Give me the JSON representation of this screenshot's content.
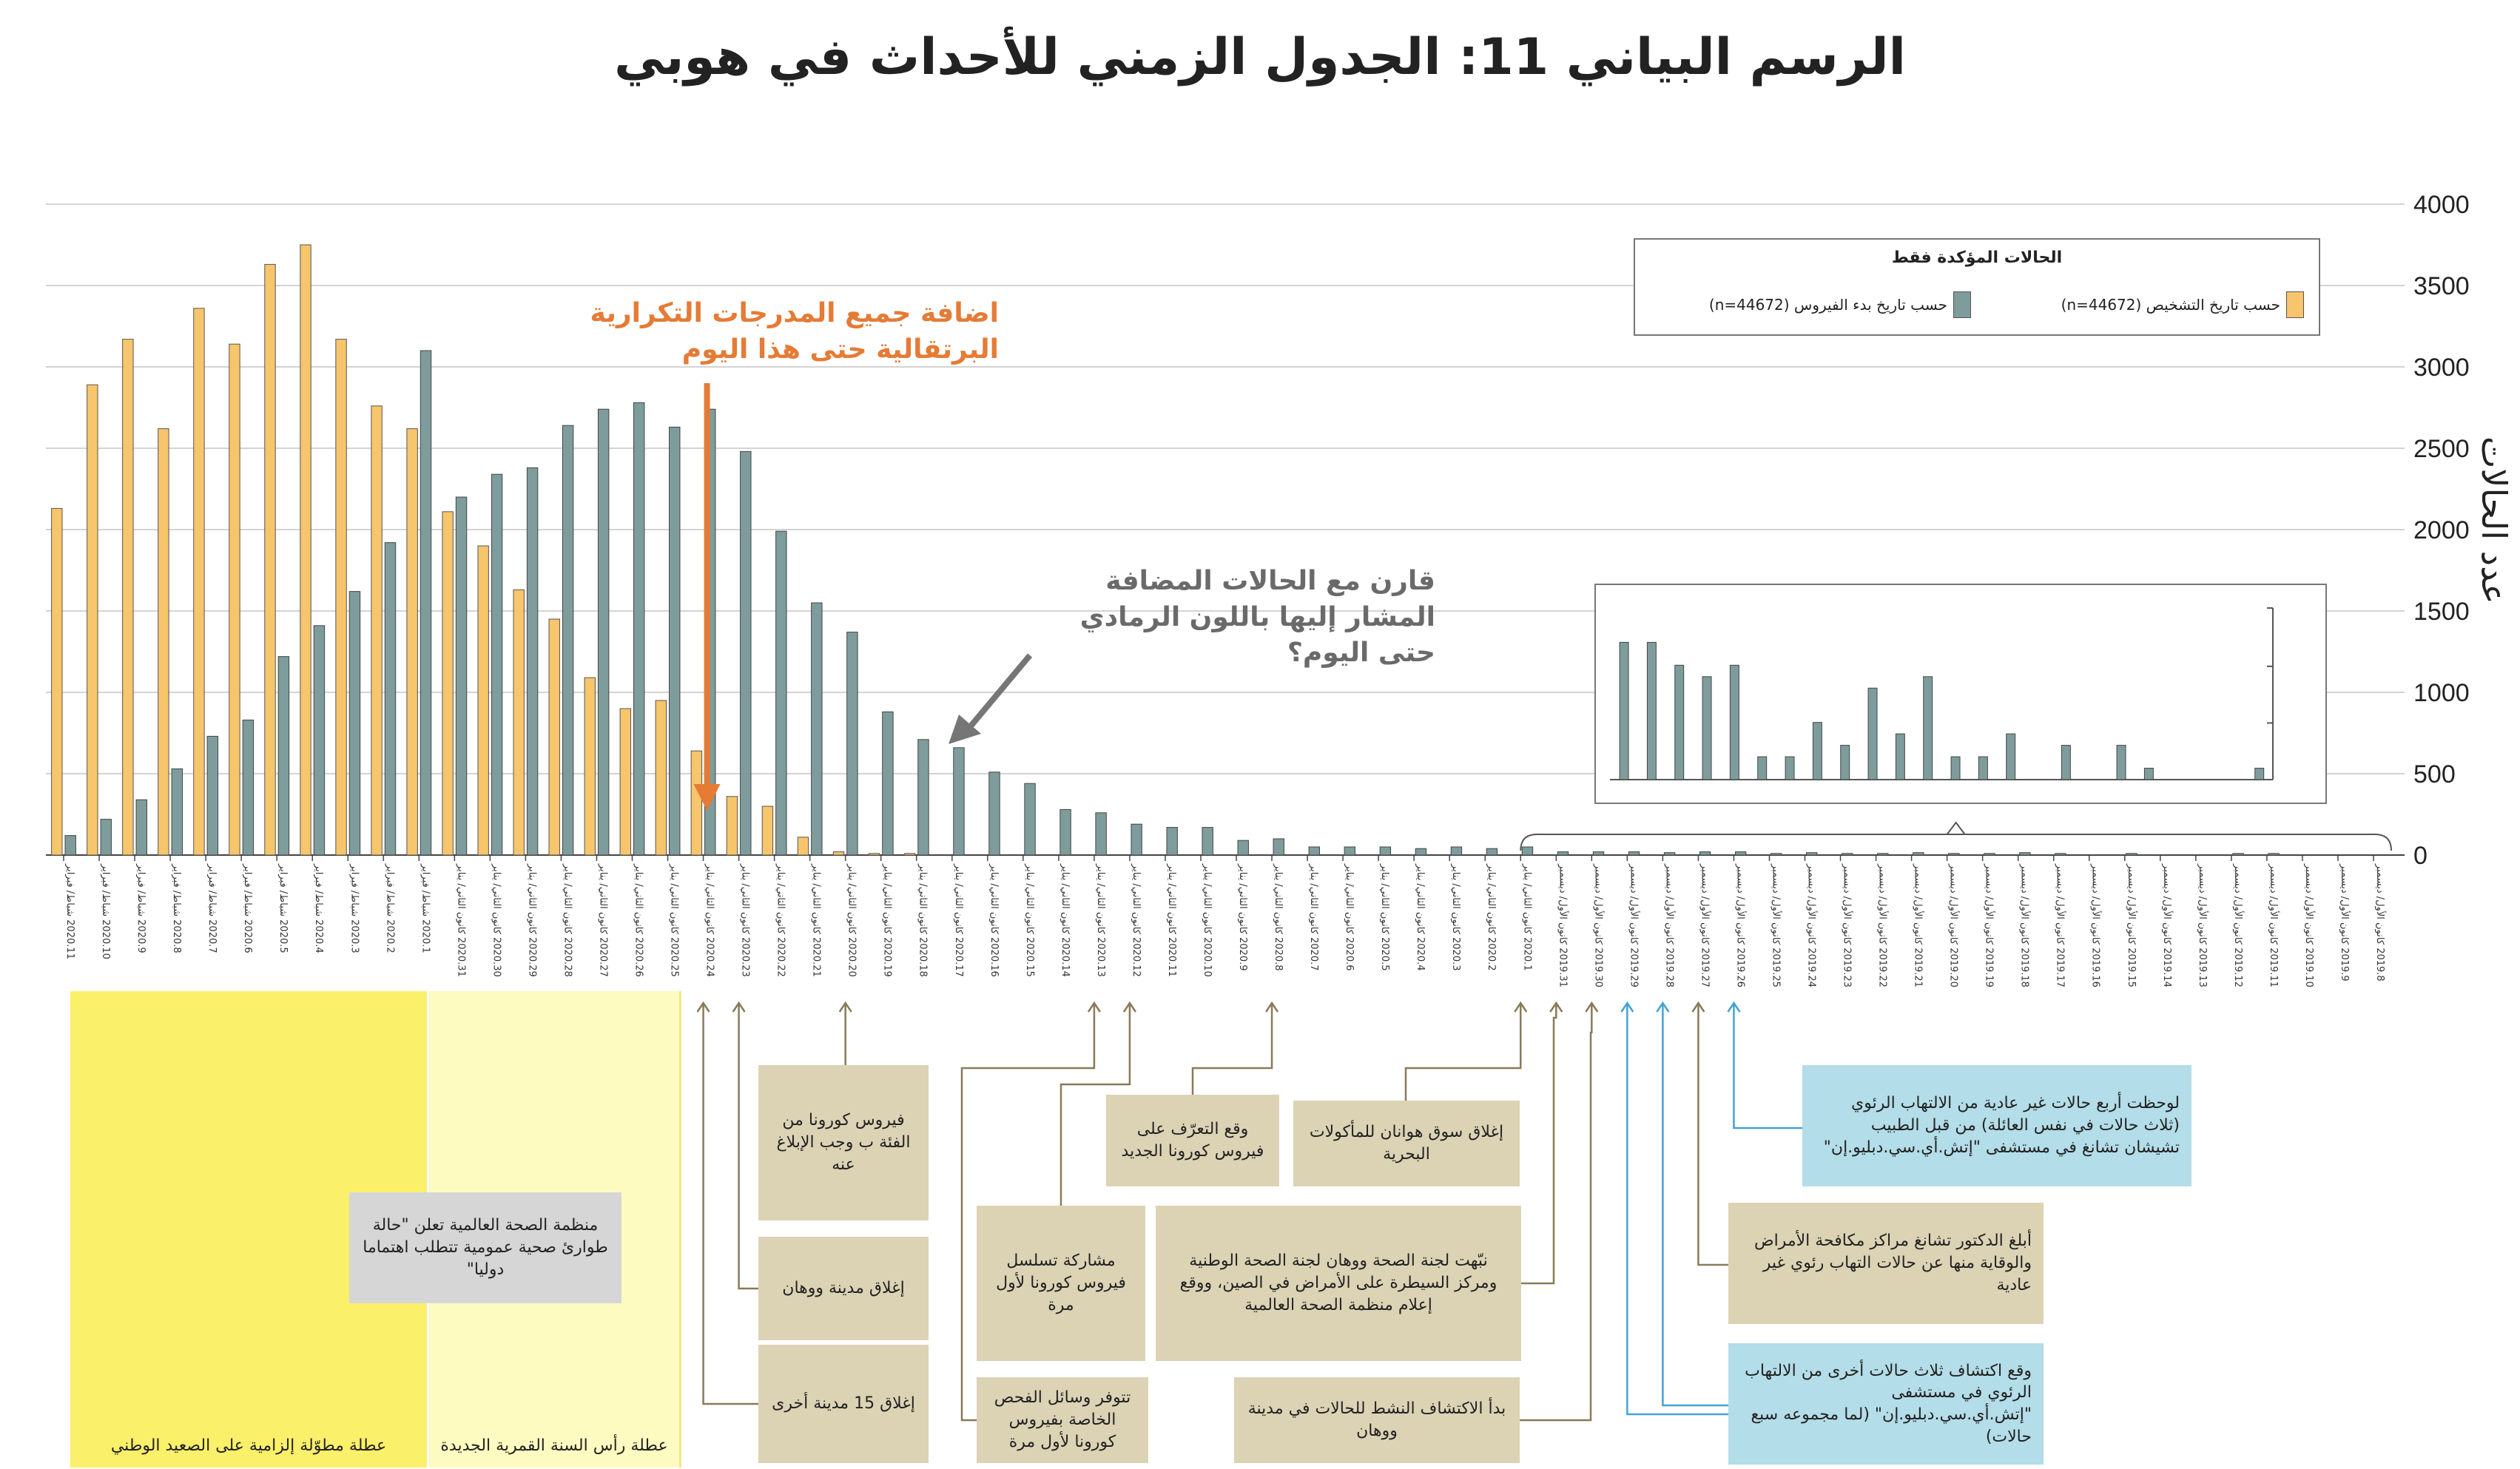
{
  "title": "الرسم البياني 11: الجدول الزمني للأحداث في هوبي",
  "colors": {
    "onset": "#f7c56b",
    "diagnosis": "#7f9c9c",
    "yellow_dark": "#fbf06a",
    "yellow_light": "#fdfbc0",
    "arrow_orange": "#e57b35",
    "arrow_gray": "#767676",
    "blue_line": "#45a2d2"
  },
  "chart_data": {
    "type": "bar",
    "ylabel": "عدد الحالات",
    "ylim": [
      0,
      4000
    ],
    "yticks": [
      "0",
      "500",
      "1000",
      "1500",
      "2000",
      "2500",
      "3000",
      "3500",
      "4000"
    ],
    "legend": {
      "title": "الحالات المؤكدة فقط",
      "items": [
        "حسب تاريخ التشخيص (n=44672)",
        "حسب تاريخ بدء الفيروس (n=44672)"
      ],
      "position": "top-right"
    },
    "categories": [
      "2020.11 شباط/ فبراير",
      "2020.10 شباط/ فبراير",
      "2020.9 شباط/ فبراير",
      "2020.8 شباط/ فبراير",
      "2020.7 شباط/ فبراير",
      "2020.6 شباط/ فبراير",
      "2020.5 شباط/ فبراير",
      "2020.4 شباط/ فبراير",
      "2020.3 شباط/ فبراير",
      "2020.2 شباط/ فبراير",
      "2020.1 شباط/ فبراير",
      "2020.31 كانون الثاني/ يناير",
      "2020.30 كانون الثاني/ يناير",
      "2020.29 كانون الثاني/ يناير",
      "2020.28 كانون الثاني/ يناير",
      "2020.27 كانون الثاني/ يناير",
      "2020.26 كانون الثاني/ يناير",
      "2020.25 كانون الثاني/ يناير",
      "2020.24 كانون الثاني/ يناير",
      "2020.23 كانون الثاني/ يناير",
      "2020.22 كانون الثاني/ يناير",
      "2020.21 كانون الثاني/ يناير",
      "2020.20 كانون الثاني/ يناير",
      "2020.19 كانون الثاني/ يناير",
      "2020.18 كانون الثاني/ يناير",
      "2020.17 كانون الثاني/ يناير",
      "2020.16 كانون الثاني/ يناير",
      "2020.15 كانون الثاني/ يناير",
      "2020.14 كانون الثاني/ يناير",
      "2020.13 كانون الثاني/ يناير",
      "2020.12 كانون الثاني/ يناير",
      "2020.11 كانون الثاني/ يناير",
      "2020.10 كانون الثاني/ يناير",
      "2020.9 كانون الثاني/ يناير",
      "2020.8 كانون الثاني/ يناير",
      "2020.7 كانون الثاني/ يناير",
      "2020.6 كانون الثاني/ يناير",
      "2020.5 كانون الثاني/ يناير",
      "2020.4 كانون الثاني/ يناير",
      "2020.3 كانون الثاني/ يناير",
      "2020.2 كانون الثاني/ يناير",
      "2020.1 كانون الثاني/ يناير",
      "2019.31 كانون الأول/ ديسمبر",
      "2019.30 كانون الأول/ ديسمبر",
      "2019.29 كانون الأول/ ديسمبر",
      "2019.28 كانون الأول/ ديسمبر",
      "2019.27 كانون الأول/ ديسمبر",
      "2019.26 كانون الأول/ ديسمبر",
      "2019.25 كانون الأول/ ديسمبر",
      "2019.24 كانون الأول/ ديسمبر",
      "2019.23 كانون الأول/ ديسمبر",
      "2019.22 كانون الأول/ ديسمبر",
      "2019.21 كانون الأول/ ديسمبر",
      "2019.20 كانون الأول/ ديسمبر",
      "2019.19 كانون الأول/ ديسمبر",
      "2019.18 كانون الأول/ ديسمبر",
      "2019.17 كانون الأول/ ديسمبر",
      "2019.16 كانون الأول/ ديسمبر",
      "2019.15 كانون الأول/ ديسمبر",
      "2019.14 كانون الأول/ ديسمبر",
      "2019.13 كانون الأول/ ديسمبر",
      "2019.12 كانون الأول/ ديسمبر",
      "2019.11 كانون الأول/ ديسمبر",
      "2019.10 كانون الأول/ ديسمبر",
      "2019.9 كانون الأول/ ديسمبر",
      "2019.8 كانون الأول/ ديسمبر"
    ],
    "series": [
      {
        "name": "حسب تاريخ التشخيص (n=44672)",
        "color": "#f7c56b",
        "values": [
          2130,
          2890,
          3170,
          2620,
          3360,
          3140,
          3630,
          3750,
          3170,
          2760,
          2620,
          2110,
          1900,
          1630,
          1450,
          1090,
          900,
          950,
          640,
          360,
          300,
          110,
          20,
          10,
          10,
          0,
          0,
          0,
          0,
          0,
          0,
          0,
          0,
          0,
          0,
          0,
          0,
          0,
          0,
          0,
          0,
          0,
          0,
          0,
          0,
          0,
          0,
          0,
          0,
          0,
          0,
          0,
          0,
          0,
          0,
          0,
          0,
          0,
          0,
          0,
          0,
          0,
          0,
          0,
          0,
          0
        ]
      },
      {
        "name": "حسب تاريخ بدء الفيروس (n=44672)",
        "color": "#7f9c9c",
        "values": [
          120,
          220,
          340,
          530,
          730,
          830,
          1220,
          1410,
          1620,
          1920,
          3100,
          2200,
          2340,
          2380,
          2640,
          2740,
          2780,
          2630,
          2740,
          2480,
          1990,
          1550,
          1370,
          880,
          710,
          660,
          510,
          440,
          280,
          260,
          190,
          170,
          170,
          90,
          100,
          50,
          50,
          50,
          40,
          50,
          40,
          50,
          20,
          20,
          20,
          15,
          20,
          20,
          10,
          15,
          10,
          10,
          15,
          10,
          10,
          15,
          10,
          0,
          10,
          0,
          0,
          10,
          10,
          0,
          0,
          0
        ]
      }
    ],
    "inset": {
      "categories": [
        "2019.31",
        "2019.30",
        "2019.29",
        "2019.28",
        "2019.27",
        "2019.26",
        "2019.25",
        "2019.24",
        "2019.23",
        "2019.22",
        "2019.21",
        "2019.20",
        "2019.19",
        "2019.18",
        "2019.17",
        "2019.16",
        "2019.15",
        "2019.14",
        "2019.13",
        "2019.12",
        "2019.11",
        "2019.10",
        "2019.9",
        "2019.8"
      ],
      "values": [
        24,
        24,
        20,
        18,
        20,
        4,
        4,
        10,
        6,
        16,
        8,
        18,
        4,
        4,
        8,
        0,
        6,
        0,
        6,
        2,
        0,
        0,
        0,
        2
      ],
      "ylim": [
        0,
        30
      ]
    }
  },
  "annotations": {
    "orange_note": "اضافة جميع المدرجات التكرارية البرتقالية حتى هذا اليوم",
    "gray_note": "قارن مع الحالات المضافة المشار إليها باللون الرمادي حتى اليوم؟"
  },
  "regions": {
    "holiday_national": "عطلة مطوّلة إلزامية على الصعيد الوطني",
    "holiday_lunar": "عطلة رأس السنة القمرية الجديدة"
  },
  "callouts": {
    "who_emergency": "منظمة الصحة العالمية تعلن \"حالة طوارئ صحية عمومية تتطلب اهتماما دوليا\"",
    "class_b": "فيروس كورونا من الفئة ب وجب الإبلاغ عنه",
    "wuhan_lockdown": "إغلاق مدينة ووهان",
    "cities_lockdown": "إغلاق 15 مدينة أخرى",
    "sequence_first": "مشاركة تسلسل فيروس كورونا لأول مرة",
    "test_kits": "تتوفر وسائل الفحص الخاصة بفيروس كورونا لأول مرة",
    "identify_virus": "وقع التعرّف على فيروس كورونا الجديد",
    "market_close": "إغلاق سوق هوانان للمأكولات البحرية",
    "commission_alert": "نبّهت لجنة الصحة ووهان لجنة الصحة الوطنية ومركز السيطرة على الأمراض في الصين، ووقع إعلام منظمة الصحة العالمية",
    "active_search": "بدأ الاكتشاف النشط للحالات في مدينة ووهان",
    "four_cases": "لوحظت أربع حالات غير عادية من الالتهاب الرئوي (ثلاث حالات في نفس العائلة) من قبل الطبيب تشيشان تشانغ في مستشفى \"إتش.أي.سي.دبليو.إن\"",
    "zhang_report": "أبلغ الدكتور تشانغ مراكز مكافحة الأمراض والوقاية منها عن حالات التهاب رئوي غير عادية",
    "three_more": "وقع اكتشاف ثلاث حالات أخرى من الالتهاب الرئوي في مستشفى \"إتش.أي.سي.دبليو.إن\" (لما مجموعه سبع حالات)"
  }
}
